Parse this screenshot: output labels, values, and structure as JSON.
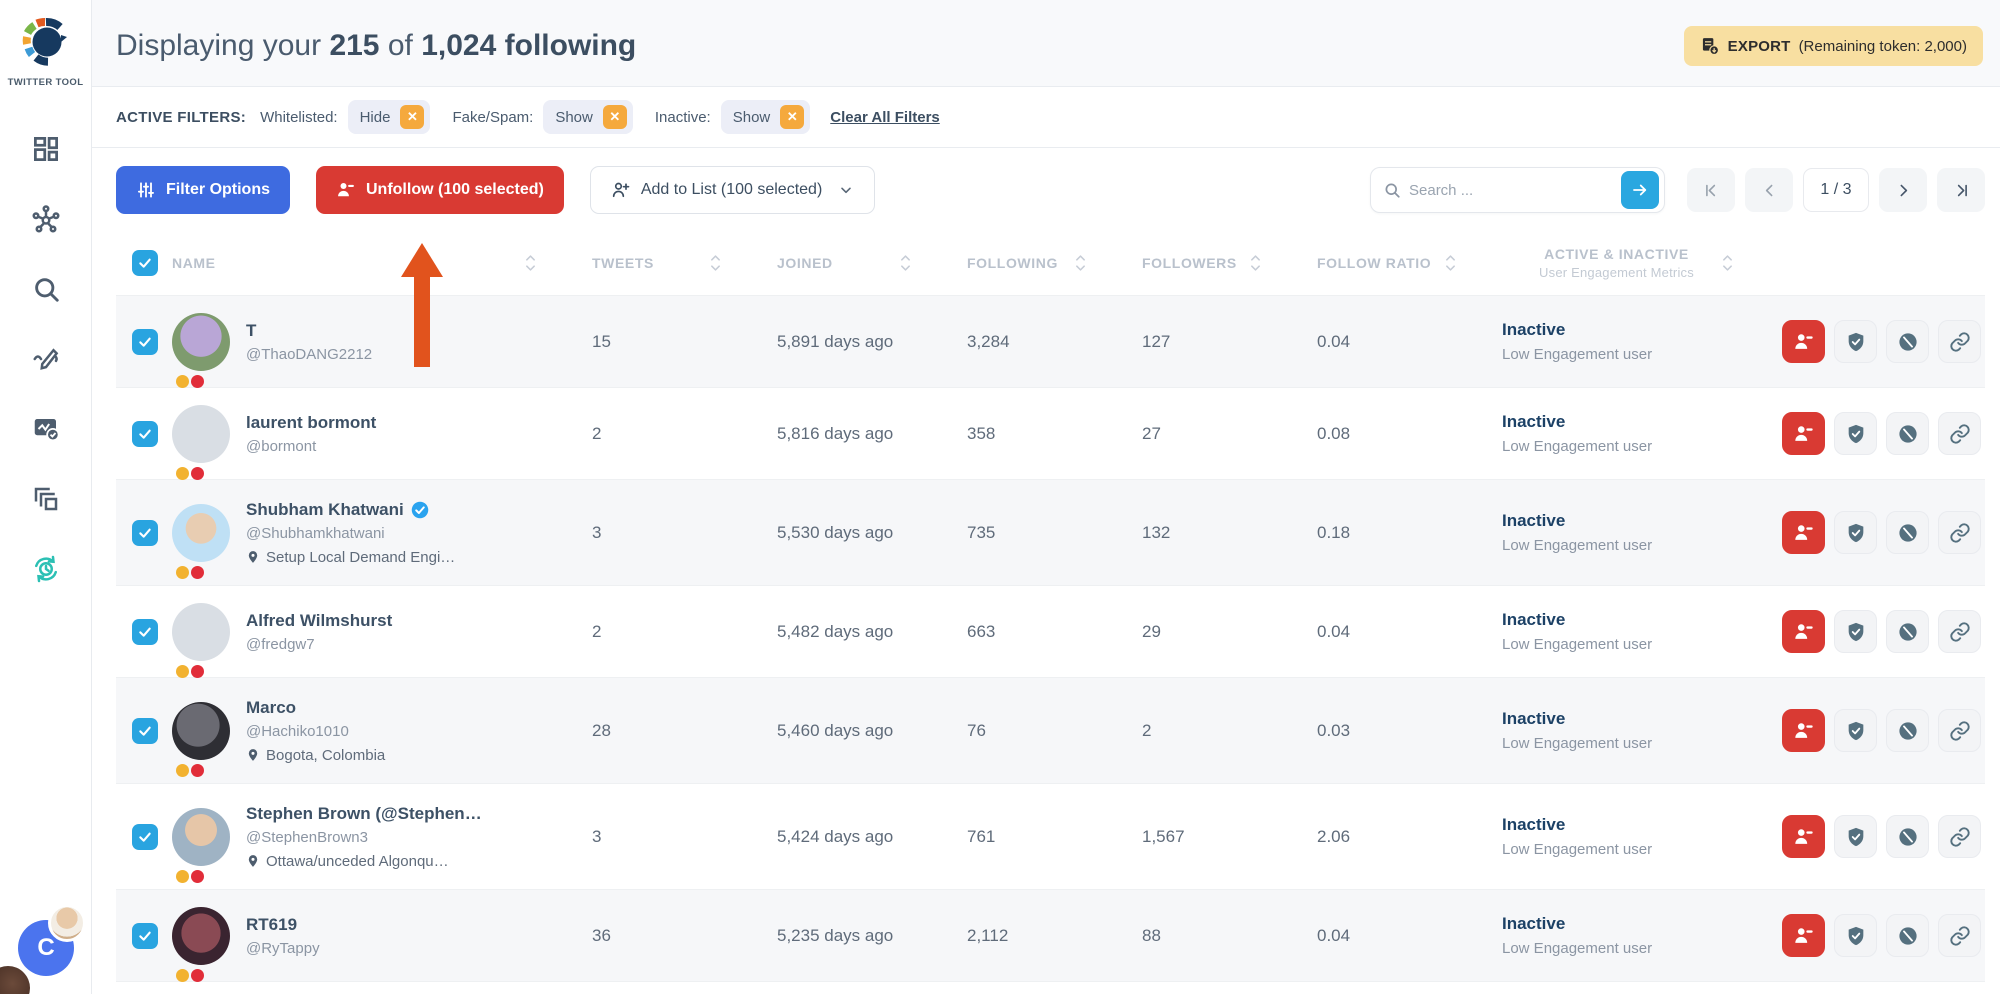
{
  "colors": {
    "accent_blue": "#3e6be0",
    "danger_red": "#d93a33",
    "sky_blue": "#2aa7e0",
    "chip_orange": "#f5a93d",
    "export_yellow": "#f8dfa1",
    "active_teal": "#2cc0b4",
    "status_navy": "#1c4166",
    "annotation_orange": "#e1531d"
  },
  "sidebar": {
    "logo_label": "TWITTER TOOL",
    "nav": [
      {
        "icon": "dashboard-icon",
        "active": false
      },
      {
        "icon": "network-icon",
        "active": false
      },
      {
        "icon": "search-icon",
        "active": false
      },
      {
        "icon": "compose-icon",
        "active": false
      },
      {
        "icon": "analytics-check-icon",
        "active": false
      },
      {
        "icon": "pages-icon",
        "active": false
      },
      {
        "icon": "refresh-clock-icon",
        "active": true
      }
    ],
    "bell_icon": "bell-icon",
    "user_initial": "C"
  },
  "header": {
    "title_prefix": "Displaying your",
    "shown_count": "215",
    "title_of": "of",
    "title_bold_tail": "1,024 following",
    "export": {
      "label": "EXPORT",
      "note": "(Remaining token: 2,000)"
    }
  },
  "filters": {
    "label": "ACTIVE FILTERS:",
    "items": [
      {
        "name": "Whitelisted:",
        "value": "Hide"
      },
      {
        "name": "Fake/Spam:",
        "value": "Show"
      },
      {
        "name": "Inactive:",
        "value": "Show"
      }
    ],
    "clear_label": "Clear All Filters"
  },
  "toolbar": {
    "filter_options_label": "Filter Options",
    "unfollow_label": "Unfollow (100 selected)",
    "add_to_list_label": "Add to List (100 selected)",
    "search_placeholder": "Search ...",
    "pagination": {
      "current": "1 / 3"
    }
  },
  "table": {
    "headers": [
      "NAME",
      "TWEETS",
      "JOINED",
      "FOLLOWING",
      "FOLLOWERS",
      "FOLLOW RATIO"
    ],
    "status_header": {
      "line1": "ACTIVE & INACTIVE",
      "line2": "User Engagement Metrics"
    },
    "rows": [
      {
        "name": "T",
        "handle": "@ThaoDANG2212",
        "verified": false,
        "location": "",
        "avatar": "photo-a",
        "tweets": "15",
        "joined": "5,891 days ago",
        "following": "3,284",
        "followers": "127",
        "ratio": "0.04",
        "status": "Inactive",
        "status_detail": "Low Engagement user"
      },
      {
        "name": "laurent bormont",
        "handle": "@bormont",
        "verified": false,
        "location": "",
        "avatar": "default",
        "tweets": "2",
        "joined": "5,816 days ago",
        "following": "358",
        "followers": "27",
        "ratio": "0.08",
        "status": "Inactive",
        "status_detail": "Low Engagement user"
      },
      {
        "name": "Shubham Khatwani",
        "handle": "@Shubhamkhatwani",
        "verified": true,
        "location": "Setup Local Demand Engi…",
        "avatar": "photo-b",
        "tweets": "3",
        "joined": "5,530 days ago",
        "following": "735",
        "followers": "132",
        "ratio": "0.18",
        "status": "Inactive",
        "status_detail": "Low Engagement user"
      },
      {
        "name": "Alfred Wilmshurst",
        "handle": "@fredgw7",
        "verified": false,
        "location": "",
        "avatar": "default",
        "tweets": "2",
        "joined": "5,482 days ago",
        "following": "663",
        "followers": "29",
        "ratio": "0.04",
        "status": "Inactive",
        "status_detail": "Low Engagement user"
      },
      {
        "name": "Marco",
        "handle": "@Hachiko1010",
        "verified": false,
        "location": "Bogota, Colombia",
        "avatar": "photo-c",
        "tweets": "28",
        "joined": "5,460 days ago",
        "following": "76",
        "followers": "2",
        "ratio": "0.03",
        "status": "Inactive",
        "status_detail": "Low Engagement user"
      },
      {
        "name": "Stephen Brown (@Stephen…",
        "handle": "@StephenBrown3",
        "verified": false,
        "location": "Ottawa/unceded Algonqu…",
        "avatar": "photo-d",
        "tweets": "3",
        "joined": "5,424 days ago",
        "following": "761",
        "followers": "1,567",
        "ratio": "2.06",
        "status": "Inactive",
        "status_detail": "Low Engagement user"
      },
      {
        "name": "RT619",
        "handle": "@RyTappy",
        "verified": false,
        "location": "",
        "avatar": "photo-e",
        "tweets": "36",
        "joined": "5,235 days ago",
        "following": "2,112",
        "followers": "88",
        "ratio": "0.04",
        "status": "Inactive",
        "status_detail": "Low Engagement user"
      }
    ]
  }
}
